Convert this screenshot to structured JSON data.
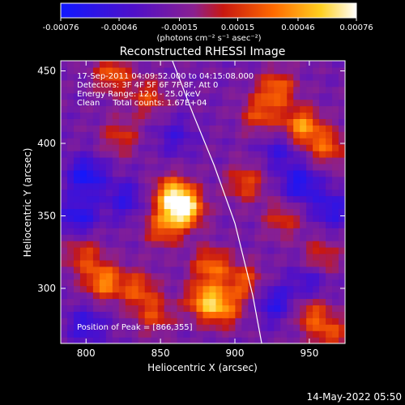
{
  "chart_data": {
    "type": "heatmap",
    "title": "Reconstructed RHESSI Image",
    "xlabel": "Heliocentric X (arcsec)",
    "ylabel": "Heliocentric Y (arcsec)",
    "xlim": [
      783,
      974
    ],
    "ylim": [
      262,
      457
    ],
    "x_ticks": [
      800,
      850,
      900,
      950
    ],
    "y_ticks": [
      300,
      350,
      400,
      450
    ],
    "colorbar": {
      "range": [
        -0.00076,
        0.00076
      ],
      "tick_values": [
        -0.00076,
        -0.00046,
        -0.00015,
        0.00015,
        0.00046,
        0.00076
      ],
      "tick_labels": [
        "-0.00076",
        "-0.00046",
        "-0.00015",
        "0.00015",
        "0.00046",
        "0.00076"
      ],
      "unit_label": "(photons cm⁻² s⁻¹ asec⁻²)",
      "colors": [
        "#1018ff",
        "#5a10c0",
        "#8020a0",
        "#c81810",
        "#ff6a00",
        "#ffcf20",
        "#ffffff"
      ]
    },
    "annotations": [
      "17-Sep-2011 04:09:52.000 to 04:15:08.000",
      "Detectors: 3F 4F 5F 6F 7F 8F, Att 0",
      "Energy Range: 12.0 - 25.0 keV",
      "Clean     Total counts: 1.67E+04"
    ],
    "peak_label": "Position of Peak = [866,355]",
    "peak": {
      "x": 866,
      "y": 355,
      "value": 0.00076
    },
    "sources": [
      {
        "x": 866,
        "y": 355,
        "amp": 1.0
      },
      {
        "x": 858,
        "y": 365,
        "amp": 0.8
      },
      {
        "x": 852,
        "y": 342,
        "amp": 0.55
      },
      {
        "x": 884,
        "y": 316,
        "amp": 0.6
      },
      {
        "x": 880,
        "y": 292,
        "amp": 0.75
      },
      {
        "x": 893,
        "y": 286,
        "amp": 0.55
      },
      {
        "x": 906,
        "y": 305,
        "amp": 0.5
      },
      {
        "x": 812,
        "y": 305,
        "amp": 0.7
      },
      {
        "x": 798,
        "y": 323,
        "amp": 0.45
      },
      {
        "x": 835,
        "y": 300,
        "amp": 0.5
      },
      {
        "x": 846,
        "y": 282,
        "amp": 0.45
      },
      {
        "x": 945,
        "y": 412,
        "amp": 0.75
      },
      {
        "x": 962,
        "y": 398,
        "amp": 0.55
      },
      {
        "x": 928,
        "y": 438,
        "amp": 0.6
      },
      {
        "x": 917,
        "y": 420,
        "amp": 0.5
      },
      {
        "x": 818,
        "y": 448,
        "amp": 0.55
      },
      {
        "x": 842,
        "y": 432,
        "amp": 0.45
      },
      {
        "x": 823,
        "y": 405,
        "amp": 0.4
      },
      {
        "x": 907,
        "y": 373,
        "amp": 0.5
      },
      {
        "x": 932,
        "y": 348,
        "amp": 0.4
      },
      {
        "x": 958,
        "y": 322,
        "amp": 0.4
      },
      {
        "x": 952,
        "y": 282,
        "amp": 0.5
      },
      {
        "x": 965,
        "y": 268,
        "amp": 0.45
      }
    ],
    "negative_regions": [
      {
        "x": 800,
        "y": 378,
        "amp": -0.6
      },
      {
        "x": 795,
        "y": 350,
        "amp": -0.5
      },
      {
        "x": 826,
        "y": 362,
        "amp": -0.4
      },
      {
        "x": 944,
        "y": 372,
        "amp": -0.55
      },
      {
        "x": 965,
        "y": 355,
        "amp": -0.45
      },
      {
        "x": 930,
        "y": 395,
        "amp": -0.35
      },
      {
        "x": 927,
        "y": 290,
        "amp": -0.45
      },
      {
        "x": 950,
        "y": 305,
        "amp": -0.35
      },
      {
        "x": 800,
        "y": 275,
        "amp": -0.4
      },
      {
        "x": 860,
        "y": 405,
        "amp": -0.3
      }
    ],
    "limb_curve": {
      "x": [
        858,
        872,
        886,
        900,
        912,
        918
      ],
      "y": [
        457,
        420,
        385,
        345,
        295,
        262
      ]
    }
  },
  "footer_timestamp": "14-May-2022 05:50"
}
